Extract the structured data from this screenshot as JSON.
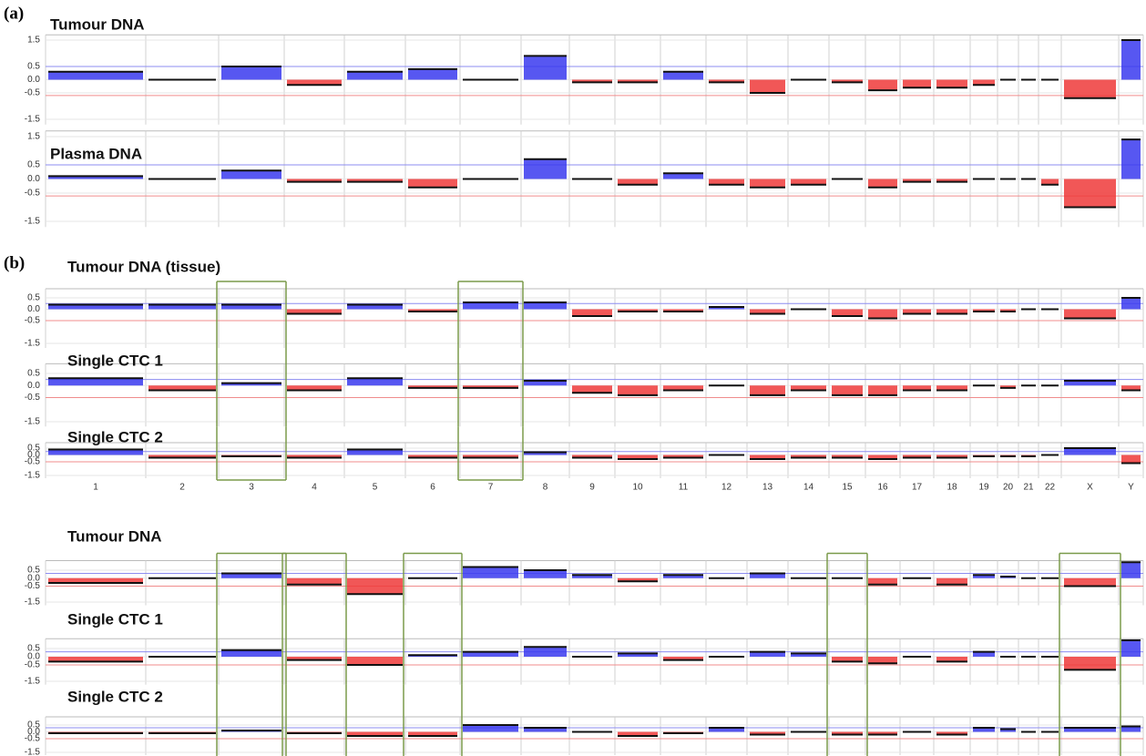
{
  "panel_labels": [
    "(a)",
    "(b)"
  ],
  "chart_data": [
    {
      "type": "bar",
      "title": "Tumour DNA",
      "ylim": [
        -1.7,
        1.7
      ],
      "yticks": [
        1.5,
        0.5,
        {
          "value": 0,
          "label": "0.0"
        },
        -0.5,
        -1.5
      ],
      "values": [
        0.3,
        0,
        0.5,
        -0.2,
        0.3,
        0.4,
        0,
        0.9,
        -0.1,
        -0.1,
        0.3,
        -0.1,
        -0.5,
        0,
        -0.1,
        -0.4,
        -0.3,
        -0.3,
        -0.2,
        0,
        0,
        0,
        -0.7,
        1.5
      ],
      "thresholds": [
        {
          "value": 0.5,
          "color": "#8c8cf0"
        },
        {
          "value": -0.6,
          "color": "#f08c8c"
        }
      ],
      "gain_color": "#3a3aee",
      "loss_color": "#ee3a3a",
      "highlight": []
    },
    {
      "type": "bar",
      "title": "Plasma DNA",
      "ylim": [
        -1.7,
        1.7
      ],
      "yticks": [
        1.5,
        0.5,
        {
          "value": 0,
          "label": "0.0"
        },
        -0.5,
        -1.5
      ],
      "values": [
        0.1,
        0,
        0.3,
        -0.1,
        -0.1,
        -0.3,
        0,
        0.7,
        0,
        -0.2,
        0.2,
        -0.2,
        -0.3,
        -0.2,
        0,
        -0.3,
        -0.1,
        -0.1,
        0,
        0,
        0,
        -0.2,
        -1.0,
        1.4
      ],
      "thresholds": [
        {
          "value": 0.5,
          "color": "#8c8cf0"
        },
        {
          "value": -0.6,
          "color": "#f08c8c"
        }
      ],
      "gain_color": "#3a3aee",
      "loss_color": "#ee3a3a",
      "highlight": []
    },
    {
      "type": "bar",
      "title": "Tumour DNA (tissue)",
      "ylim": [
        -1.7,
        0.9
      ],
      "yticks": [
        0.5,
        {
          "value": 0,
          "label": "0.0"
        },
        -0.5,
        -1.5
      ],
      "values": [
        0.2,
        0.2,
        0.2,
        -0.2,
        0.2,
        -0.1,
        0.3,
        0.3,
        -0.3,
        -0.1,
        -0.1,
        0.1,
        -0.2,
        0,
        -0.3,
        -0.4,
        -0.2,
        -0.2,
        -0.1,
        -0.1,
        0,
        0,
        -0.4,
        0.5
      ],
      "thresholds": [
        {
          "value": 0.25,
          "color": "#8c8cf0"
        },
        {
          "value": -0.5,
          "color": "#f08c8c"
        }
      ],
      "gain_color": "#3a3aee",
      "loss_color": "#ee3a3a",
      "highlight": [
        2,
        6
      ]
    },
    {
      "type": "bar",
      "title": "Single CTC 1",
      "ylim": [
        -1.7,
        0.9
      ],
      "yticks": [
        0.5,
        {
          "value": 0,
          "label": "0.0"
        },
        -0.5,
        -1.5
      ],
      "values": [
        0.3,
        -0.2,
        0.1,
        -0.2,
        0.3,
        -0.1,
        -0.1,
        0.2,
        -0.3,
        -0.4,
        -0.2,
        0,
        -0.4,
        -0.2,
        -0.4,
        -0.4,
        -0.2,
        -0.2,
        0,
        -0.1,
        0,
        0,
        0.2,
        -0.2
      ],
      "thresholds": [
        {
          "value": 0.25,
          "color": "#8c8cf0"
        },
        {
          "value": -0.5,
          "color": "#f08c8c"
        }
      ],
      "gain_color": "#3a3aee",
      "loss_color": "#ee3a3a",
      "highlight": [
        2,
        6
      ]
    },
    {
      "type": "bar",
      "title": "Single CTC 2",
      "ylim": [
        -1.7,
        0.9
      ],
      "yticks": [
        0.5,
        {
          "value": 0,
          "label": "0.0"
        },
        -0.5,
        -1.5
      ],
      "categories": [
        "1",
        "2",
        "3",
        "4",
        "5",
        "6",
        "7",
        "8",
        "9",
        "10",
        "11",
        "12",
        "13",
        "14",
        "15",
        "16",
        "17",
        "18",
        "19",
        "20",
        "21",
        "22",
        "X",
        "Y"
      ],
      "values": [
        0.4,
        -0.2,
        -0.1,
        -0.2,
        0.4,
        -0.2,
        -0.2,
        0.2,
        -0.2,
        -0.3,
        -0.2,
        0,
        -0.3,
        -0.2,
        -0.2,
        -0.3,
        -0.2,
        -0.2,
        -0.1,
        -0.1,
        -0.1,
        0,
        0.5,
        -0.6
      ],
      "thresholds": [
        {
          "value": 0.25,
          "color": "#8c8cf0"
        },
        {
          "value": -0.5,
          "color": "#f08c8c"
        }
      ],
      "gain_color": "#3a3aee",
      "loss_color": "#ee3a3a",
      "highlight": [
        2,
        6
      ]
    },
    {
      "type": "bar",
      "title": "Tumour DNA",
      "ylim": [
        -1.7,
        1.1
      ],
      "yticks": [
        0.5,
        {
          "value": 0,
          "label": "0.0"
        },
        -0.5,
        -1.5
      ],
      "values": [
        -0.3,
        0,
        0.3,
        -0.4,
        -1.0,
        0,
        0.7,
        0.5,
        0.2,
        -0.2,
        0.2,
        0,
        0.3,
        0,
        0,
        -0.4,
        0,
        -0.4,
        0.2,
        0.1,
        0,
        0,
        -0.5,
        1.0
      ],
      "thresholds": [
        {
          "value": 0.3,
          "color": "#8c8cf0"
        },
        {
          "value": -0.5,
          "color": "#f08c8c"
        }
      ],
      "gain_color": "#3a3aee",
      "loss_color": "#ee3a3a",
      "highlight": [
        2,
        3,
        5,
        14,
        22
      ]
    },
    {
      "type": "bar",
      "title": "Single CTC 1",
      "ylim": [
        -1.7,
        1.1
      ],
      "yticks": [
        0.5,
        {
          "value": 0,
          "label": "0.0"
        },
        -0.5,
        -1.5
      ],
      "values": [
        -0.3,
        0,
        0.4,
        -0.2,
        -0.5,
        0.1,
        0.3,
        0.6,
        0,
        0.2,
        -0.2,
        0,
        0.3,
        0.2,
        -0.3,
        -0.4,
        0,
        -0.3,
        0.3,
        0,
        0,
        0,
        -0.8,
        1.0
      ],
      "thresholds": [
        {
          "value": 0.3,
          "color": "#8c8cf0"
        },
        {
          "value": -0.5,
          "color": "#f08c8c"
        }
      ],
      "gain_color": "#3a3aee",
      "loss_color": "#ee3a3a",
      "highlight": [
        2,
        3,
        5,
        14,
        22
      ]
    },
    {
      "type": "bar",
      "title": "Single CTC 2",
      "ylim": [
        -1.7,
        1.1
      ],
      "yticks": [
        0.5,
        {
          "value": 0,
          "label": "0.0"
        },
        -0.5,
        -1.5
      ],
      "values": [
        -0.1,
        -0.1,
        0.1,
        -0.1,
        -0.3,
        -0.3,
        0.5,
        0.3,
        0,
        -0.3,
        -0.1,
        0.3,
        -0.2,
        0,
        -0.2,
        -0.2,
        0,
        -0.2,
        0.3,
        0.2,
        0,
        0,
        0.3,
        0.4
      ],
      "thresholds": [
        {
          "value": 0.3,
          "color": "#8c8cf0"
        },
        {
          "value": -0.5,
          "color": "#f08c8c"
        }
      ],
      "gain_color": "#3a3aee",
      "loss_color": "#ee3a3a",
      "highlight": [
        2,
        3,
        5,
        14,
        22
      ]
    }
  ]
}
